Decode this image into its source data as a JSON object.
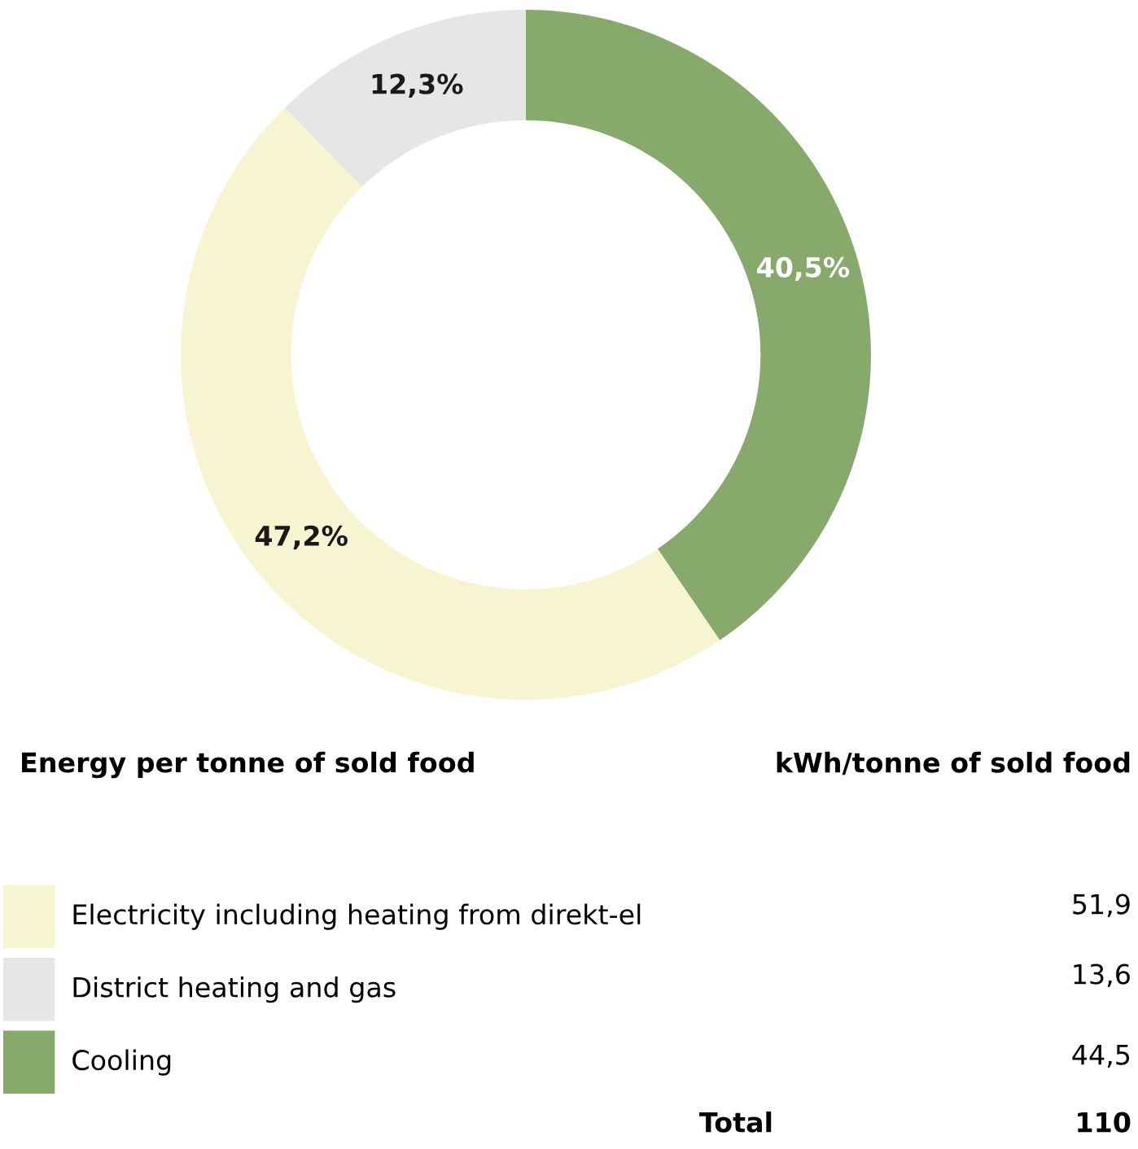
{
  "chart_data": [
    {
      "type": "donut",
      "categories": [
        "Electricity including heating from direkt-el",
        "District heating and gas",
        "Cooling"
      ],
      "values": [
        47.2,
        12.3,
        40.5
      ],
      "value_labels": [
        "47,2%",
        "12,3%",
        "40,5%"
      ],
      "colors": [
        "#f7f4d2",
        "#e6e6e6",
        "#87a96b"
      ],
      "legend": "bottom left"
    },
    {
      "type": "other",
      "title": "Energy per tonne of sold food",
      "annotations": [
        "kWh/tonne of sold food",
        "51,9",
        "13,6",
        "44,5",
        "Total",
        "110"
      ]
    }
  ]
}
